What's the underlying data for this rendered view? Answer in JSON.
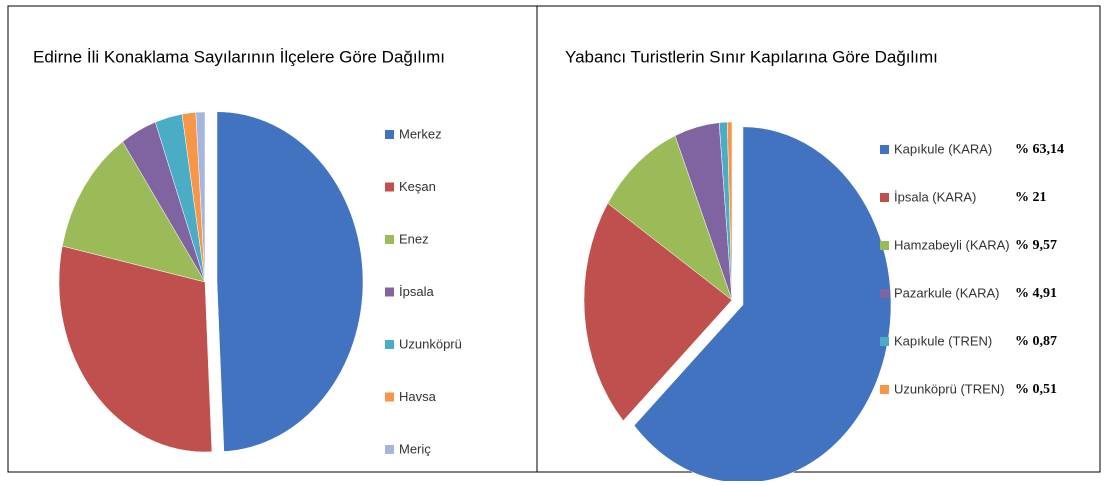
{
  "chart_data": [
    {
      "type": "pie",
      "title": "Edirne İli Konaklama Sayılarının İlçelere Göre Dağılımı",
      "categories": [
        "Merkez",
        "Keşan",
        "Enez",
        "İpsala",
        "Uzunköprü",
        "Havsa",
        "Meriç"
      ],
      "values": [
        49,
        29,
        12,
        4,
        3,
        1.5,
        1
      ],
      "colors": [
        "#4273c0",
        "#c0504d",
        "#9bbb59",
        "#8064a2",
        "#4bacc6",
        "#f79646",
        "#a5b6de"
      ]
    },
    {
      "type": "pie",
      "title": "Yabancı Turistlerin Sınır Kapılarına Göre Dağılımı",
      "categories": [
        "Kapıkule (KARA)",
        "İpsala (KARA)",
        "Hamzabeyli (KARA)",
        "Pazarkule (KARA)",
        "Kapıkule (TREN)",
        "Uzunköprü (TREN)"
      ],
      "values": [
        63.14,
        21,
        9.57,
        4.91,
        0.87,
        0.51
      ],
      "value_labels": [
        "% 63,14",
        "% 21",
        "% 9,57",
        "% 4,91",
        "% 0,87",
        "% 0,51"
      ],
      "colors": [
        "#4273c0",
        "#c0504d",
        "#9bbb59",
        "#8064a2",
        "#4bacc6",
        "#f79646"
      ]
    }
  ]
}
